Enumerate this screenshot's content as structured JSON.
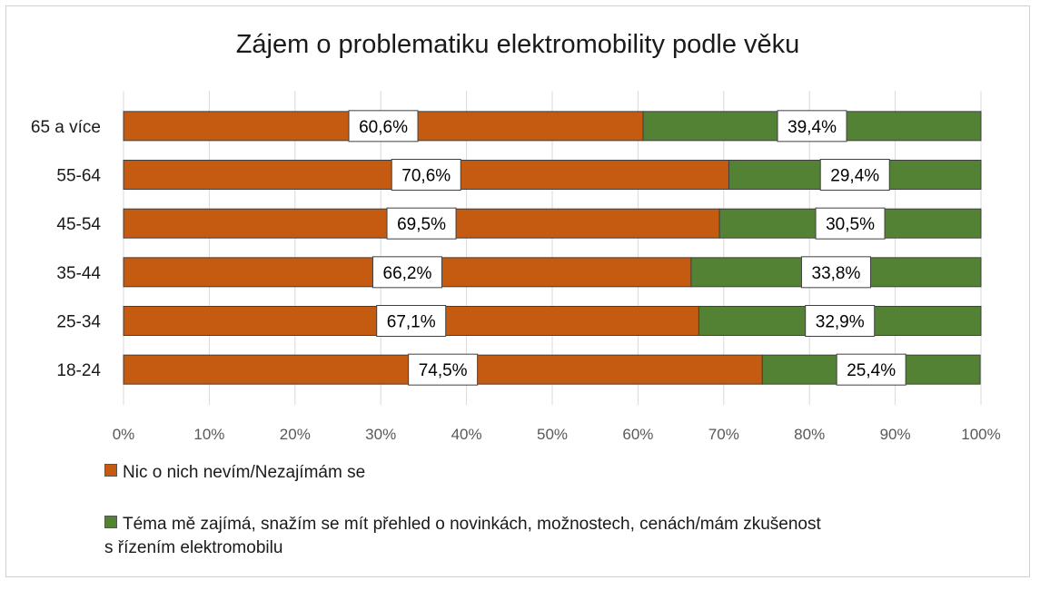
{
  "chart_data": {
    "type": "bar",
    "orientation": "horizontal",
    "stacked": true,
    "title": "Zájem o problematiku elektromobility podle věku",
    "categories": [
      "65 a více",
      "55-64",
      "45-54",
      "35-44",
      "25-34",
      "18-24"
    ],
    "series": [
      {
        "name": "Nic o nich nevím/Nezajímám se",
        "color": "#c55a11",
        "values": [
          60.6,
          70.6,
          69.5,
          66.2,
          67.1,
          74.5
        ],
        "labels": [
          "60,6%",
          "70,6%",
          "69,5%",
          "66,2%",
          "67,1%",
          "74,5%"
        ]
      },
      {
        "name": "Téma mě zajímá, snažím se mít přehled o novinkách, možnostech, cenách/mám zkušenost s řízením elektromobilu",
        "color": "#548235",
        "values": [
          39.4,
          29.4,
          30.5,
          33.8,
          32.9,
          25.4
        ],
        "labels": [
          "39,4%",
          "29,4%",
          "30,5%",
          "33,8%",
          "32,9%",
          "25,4%"
        ]
      }
    ],
    "x_ticks": [
      "0%",
      "10%",
      "20%",
      "30%",
      "40%",
      "50%",
      "60%",
      "70%",
      "80%",
      "90%",
      "100%"
    ],
    "xlim": [
      0,
      100
    ],
    "grid": true,
    "legend_position": "bottom"
  },
  "legend": {
    "item1": "Nic o nich nevím/Nezajímám se",
    "item2_line1": "Téma mě zajímá, snažím se mít přehled o novinkách, možnostech, cenách/mám zkušenost",
    "item2_line2": "s řízením elektromobilu"
  }
}
